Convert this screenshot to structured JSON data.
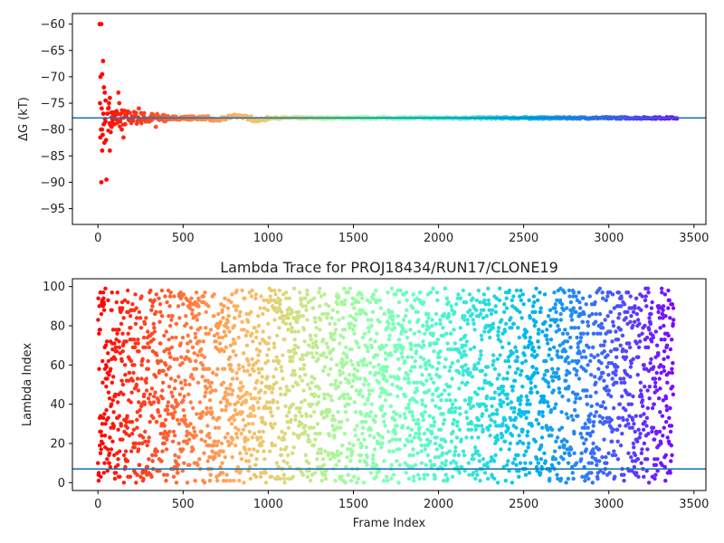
{
  "chart_data": [
    {
      "type": "scatter",
      "title": "",
      "xlabel": "",
      "ylabel": "ΔG (kT)",
      "xlim": [
        -150,
        3570
      ],
      "ylim": [
        -98,
        -58
      ],
      "xticks": [
        0,
        500,
        1000,
        1500,
        2000,
        2500,
        3000,
        3500
      ],
      "yticks": [
        -60,
        -65,
        -70,
        -75,
        -80,
        -85,
        -90,
        -95
      ],
      "reference_line": -77.8,
      "reference_color": "#1f77b4",
      "colormap": "rainbow-reversed (red at frame 0 to purple at frame ~3400)",
      "points": [
        [
          10,
          -60
        ],
        [
          20,
          -60
        ],
        [
          30,
          -67
        ],
        [
          15,
          -70
        ],
        [
          25,
          -69.5
        ],
        [
          35,
          -72
        ],
        [
          40,
          -73
        ],
        [
          45,
          -74.5
        ],
        [
          12,
          -75
        ],
        [
          22,
          -76
        ],
        [
          32,
          -77
        ],
        [
          42,
          -78
        ],
        [
          18,
          -80
        ],
        [
          28,
          -81
        ],
        [
          38,
          -82.5
        ],
        [
          48,
          -82
        ],
        [
          14,
          -81.5
        ],
        [
          24,
          -80
        ],
        [
          34,
          -79
        ],
        [
          44,
          -78.5
        ],
        [
          55,
          -77
        ],
        [
          60,
          -76
        ],
        [
          65,
          -75
        ],
        [
          70,
          -74
        ],
        [
          75,
          -80.5
        ],
        [
          80,
          -79.5
        ],
        [
          85,
          -78
        ],
        [
          90,
          -77
        ],
        [
          95,
          -79
        ],
        [
          100,
          -78
        ],
        [
          110,
          -76.5
        ],
        [
          120,
          -73
        ],
        [
          125,
          -75
        ],
        [
          130,
          -78.5
        ],
        [
          140,
          -80
        ],
        [
          150,
          -81.5
        ],
        [
          160,
          -79
        ],
        [
          170,
          -77
        ],
        [
          180,
          -78
        ],
        [
          200,
          -77.5
        ],
        [
          220,
          -77
        ],
        [
          240,
          -76
        ],
        [
          260,
          -77
        ],
        [
          280,
          -78
        ],
        [
          300,
          -78.5
        ],
        [
          320,
          -78
        ],
        [
          340,
          -79.5
        ],
        [
          360,
          -78
        ],
        [
          400,
          -77.5
        ],
        [
          450,
          -78
        ],
        [
          500,
          -77.8
        ],
        [
          600,
          -77.6
        ],
        [
          700,
          -78
        ],
        [
          800,
          -77.2
        ],
        [
          900,
          -77.5
        ],
        [
          1000,
          -77.8
        ],
        [
          1200,
          -77.9
        ],
        [
          1500,
          -77.8
        ],
        [
          2000,
          -77.9
        ],
        [
          2500,
          -77.8
        ],
        [
          3000,
          -77.9
        ],
        [
          3400,
          -77.9
        ],
        [
          20,
          -90
        ],
        [
          50,
          -89.5
        ],
        [
          25,
          -84
        ],
        [
          70,
          -84
        ]
      ]
    },
    {
      "type": "scatter",
      "title": "Lambda Trace for PROJ18434/RUN17/CLONE19",
      "xlabel": "Frame Index",
      "ylabel": "Lambda Index",
      "xlim": [
        -150,
        3570
      ],
      "ylim": [
        -4,
        104
      ],
      "xticks": [
        0,
        500,
        1000,
        1500,
        2000,
        2500,
        3000,
        3500
      ],
      "yticks": [
        0,
        20,
        40,
        60,
        80,
        100
      ],
      "reference_line": 7,
      "reference_color": "#1f77b4",
      "x_range": [
        0,
        3380
      ],
      "y_range": [
        0,
        99
      ],
      "approx_point_count": 3400,
      "colormap": "rainbow-reversed (red at frame 0 to purple at frame ~3400)"
    }
  ]
}
